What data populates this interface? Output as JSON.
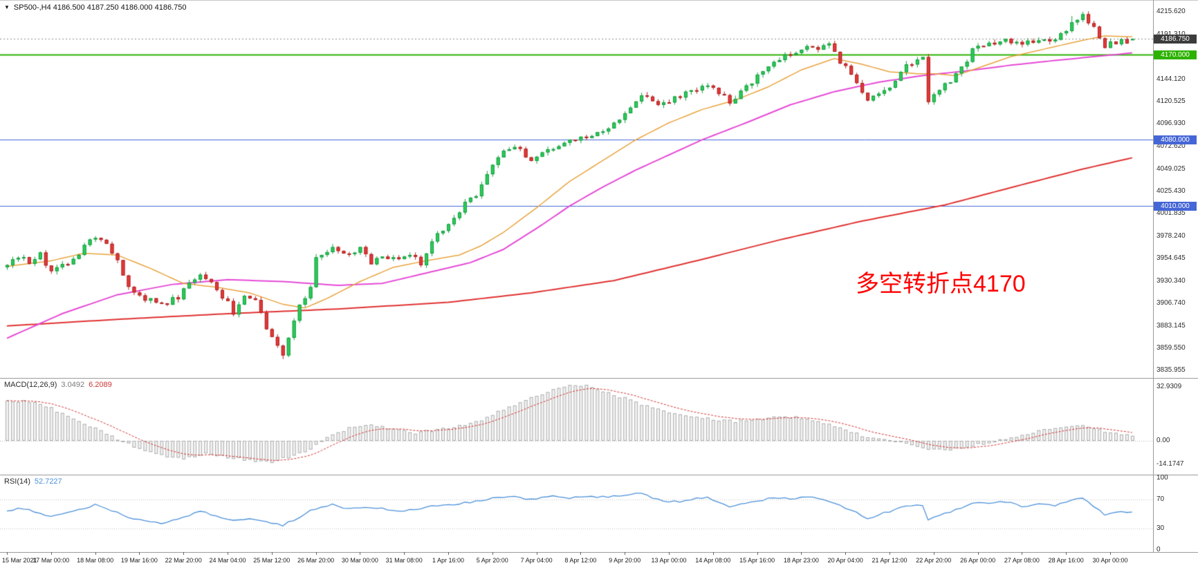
{
  "header": {
    "icon": "▼",
    "text": "SP500-,H4  4186.500 4187.250 4186.000 4186.750"
  },
  "chart_data": {
    "type": "candlestick",
    "symbol": "SP500-",
    "timeframe": "H4",
    "current_ohlc": {
      "open": 4186.5,
      "high": 4187.25,
      "low": 4186.0,
      "close": 4186.75
    },
    "ylim": [
      3828,
      4228
    ],
    "bars": 205,
    "grid": false,
    "price_axis_ticks": [
      "4215.620",
      "4191.310",
      "4144.120",
      "4120.525",
      "4096.930",
      "4072.620",
      "4049.025",
      "4025.430",
      "4001.835",
      "3978.240",
      "3954.645",
      "3930.340",
      "3906.740",
      "3883.145",
      "3859.550",
      "3835.955"
    ],
    "time_ticks": [
      "15 Mar 2021",
      "17 Mar 00:00",
      "18 Mar 08:00",
      "19 Mar 16:00",
      "22 Mar 20:00",
      "24 Mar 04:00",
      "25 Mar 12:00",
      "26 Mar 20:00",
      "30 Mar 00:00",
      "31 Mar 08:00",
      "1 Apr 16:00",
      "5 Apr 20:00",
      "7 Apr 04:00",
      "8 Apr 12:00",
      "9 Apr 20:00",
      "13 Apr 00:00",
      "14 Apr 08:00",
      "15 Apr 16:00",
      "18 Apr 23:00",
      "20 Apr 04:00",
      "21 Apr 12:00",
      "22 Apr 20:00",
      "26 Apr 00:00",
      "27 Apr 08:00",
      "28 Apr 16:00",
      "30 Apr 00:00"
    ],
    "close_anchors": [
      [
        0,
        3945
      ],
      [
        2,
        3956
      ],
      [
        4,
        3950
      ],
      [
        6,
        3958
      ],
      [
        8,
        3940
      ],
      [
        11,
        3950
      ],
      [
        13,
        3960
      ],
      [
        16,
        3978
      ],
      [
        18,
        3972
      ],
      [
        20,
        3950
      ],
      [
        23,
        3916
      ],
      [
        26,
        3910
      ],
      [
        29,
        3908
      ],
      [
        31,
        3914
      ],
      [
        35,
        3938
      ],
      [
        37,
        3932
      ],
      [
        41,
        3898
      ],
      [
        43,
        3916
      ],
      [
        45,
        3908
      ],
      [
        47,
        3882
      ],
      [
        49,
        3862
      ],
      [
        50,
        3852
      ],
      [
        52,
        3886
      ],
      [
        53,
        3903
      ],
      [
        55,
        3925
      ],
      [
        56,
        3956
      ],
      [
        58,
        3962
      ],
      [
        59,
        3968
      ],
      [
        61,
        3958
      ],
      [
        64,
        3964
      ],
      [
        66,
        3950
      ],
      [
        68,
        3958
      ],
      [
        71,
        3952
      ],
      [
        73,
        3958
      ],
      [
        75,
        3950
      ],
      [
        77,
        3974
      ],
      [
        79,
        3984
      ],
      [
        81,
        3998
      ],
      [
        83,
        4014
      ],
      [
        85,
        4020
      ],
      [
        87,
        4042
      ],
      [
        89,
        4060
      ],
      [
        91,
        4072
      ],
      [
        93,
        4068
      ],
      [
        95,
        4056
      ],
      [
        97,
        4066
      ],
      [
        99,
        4072
      ],
      [
        101,
        4078
      ],
      [
        103,
        4080
      ],
      [
        105,
        4084
      ],
      [
        107,
        4088
      ],
      [
        109,
        4094
      ],
      [
        111,
        4100
      ],
      [
        113,
        4112
      ],
      [
        115,
        4126
      ],
      [
        117,
        4120
      ],
      [
        119,
        4118
      ],
      [
        121,
        4124
      ],
      [
        123,
        4128
      ],
      [
        125,
        4132
      ],
      [
        127,
        4138
      ],
      [
        129,
        4130
      ],
      [
        131,
        4121
      ],
      [
        133,
        4130
      ],
      [
        135,
        4142
      ],
      [
        137,
        4155
      ],
      [
        139,
        4164
      ],
      [
        141,
        4170
      ],
      [
        143,
        4174
      ],
      [
        145,
        4180
      ],
      [
        147,
        4177
      ],
      [
        149,
        4180
      ],
      [
        151,
        4163
      ],
      [
        153,
        4150
      ],
      [
        155,
        4132
      ],
      [
        156,
        4122
      ],
      [
        158,
        4128
      ],
      [
        160,
        4138
      ],
      [
        162,
        4150
      ],
      [
        163,
        4158
      ],
      [
        165,
        4163
      ],
      [
        166,
        4170
      ],
      [
        167,
        4122
      ],
      [
        168,
        4128
      ],
      [
        169,
        4133
      ],
      [
        171,
        4142
      ],
      [
        173,
        4155
      ],
      [
        175,
        4176
      ],
      [
        177,
        4180
      ],
      [
        179,
        4183
      ],
      [
        181,
        4186
      ],
      [
        183,
        4181
      ],
      [
        185,
        4183
      ],
      [
        187,
        4187
      ],
      [
        189,
        4182
      ],
      [
        191,
        4190
      ],
      [
        193,
        4206
      ],
      [
        195,
        4211
      ],
      [
        196,
        4205
      ],
      [
        197,
        4198
      ],
      [
        199,
        4179
      ],
      [
        201,
        4184
      ],
      [
        203,
        4183
      ],
      [
        204,
        4186.75
      ]
    ],
    "overrides": {
      "low": {
        "50": 3848
      },
      "high": {
        "193": 4211,
        "195": 4215.5
      }
    },
    "candle_colors": {
      "up": "#2ECC5B",
      "up_edge": "#159B3F",
      "down": "#E23B3B",
      "down_edge": "#B02020"
    },
    "moving_averages": [
      {
        "name": "ma-fast-orange",
        "color": "#E8A33D",
        "width": 1.5,
        "anchors": [
          [
            0,
            3946
          ],
          [
            8,
            3952
          ],
          [
            14,
            3960
          ],
          [
            20,
            3958
          ],
          [
            26,
            3944
          ],
          [
            32,
            3928
          ],
          [
            38,
            3924
          ],
          [
            44,
            3918
          ],
          [
            50,
            3906
          ],
          [
            54,
            3902
          ],
          [
            58,
            3912
          ],
          [
            64,
            3930
          ],
          [
            70,
            3945
          ],
          [
            76,
            3952
          ],
          [
            82,
            3958
          ],
          [
            86,
            3968
          ],
          [
            90,
            3982
          ],
          [
            96,
            4008
          ],
          [
            102,
            4036
          ],
          [
            108,
            4058
          ],
          [
            114,
            4080
          ],
          [
            120,
            4098
          ],
          [
            126,
            4112
          ],
          [
            132,
            4122
          ],
          [
            138,
            4136
          ],
          [
            144,
            4154
          ],
          [
            150,
            4166
          ],
          [
            155,
            4160
          ],
          [
            160,
            4152
          ],
          [
            165,
            4150
          ],
          [
            168,
            4150
          ],
          [
            172,
            4148
          ],
          [
            176,
            4156
          ],
          [
            182,
            4168
          ],
          [
            188,
            4176
          ],
          [
            194,
            4184
          ],
          [
            199,
            4190
          ],
          [
            204,
            4189
          ]
        ]
      },
      {
        "name": "ma-mid-magenta",
        "color": "#E549D6",
        "width": 2,
        "anchors": [
          [
            0,
            3870
          ],
          [
            10,
            3896
          ],
          [
            20,
            3916
          ],
          [
            30,
            3927
          ],
          [
            40,
            3932
          ],
          [
            50,
            3930
          ],
          [
            60,
            3926
          ],
          [
            68,
            3928
          ],
          [
            76,
            3939
          ],
          [
            84,
            3950
          ],
          [
            90,
            3964
          ],
          [
            97,
            3990
          ],
          [
            102,
            4010
          ],
          [
            108,
            4030
          ],
          [
            114,
            4048
          ],
          [
            120,
            4064
          ],
          [
            126,
            4080
          ],
          [
            134,
            4098
          ],
          [
            142,
            4117
          ],
          [
            150,
            4131
          ],
          [
            158,
            4141
          ],
          [
            166,
            4148
          ],
          [
            174,
            4153
          ],
          [
            182,
            4159
          ],
          [
            190,
            4164
          ],
          [
            197,
            4168
          ],
          [
            204,
            4172
          ]
        ]
      },
      {
        "name": "ma-slow-red",
        "color": "#E03131",
        "width": 2,
        "anchors": [
          [
            0,
            3883
          ],
          [
            20,
            3890
          ],
          [
            40,
            3896
          ],
          [
            60,
            3901
          ],
          [
            80,
            3908
          ],
          [
            95,
            3918
          ],
          [
            110,
            3931
          ],
          [
            125,
            3952
          ],
          [
            140,
            3974
          ],
          [
            155,
            3994
          ],
          [
            170,
            4011
          ],
          [
            185,
            4034
          ],
          [
            195,
            4049
          ],
          [
            204,
            4061
          ]
        ]
      }
    ],
    "hlines": [
      {
        "price": 4170.0,
        "label": "4170.000",
        "color": "#2DB200",
        "width": 2
      },
      {
        "price": 4080.0,
        "label": "4080.000",
        "color": "#4566D6",
        "width": 1
      },
      {
        "price": 4010.0,
        "label": "4010.000",
        "color": "#4566D6",
        "width": 1
      }
    ],
    "current_price_tag": {
      "label": "4186.750",
      "price": 4186.75,
      "bg": "#3C3C3C"
    },
    "annotation": {
      "text": "多空转折点4170",
      "color": "#FF0000"
    },
    "macd": {
      "label": "MACD(12,26,9)",
      "value_main": "3.0492",
      "value_signal": "6.2089",
      "axis_ticks": [
        "32.9309",
        "0.00",
        "-14.1747"
      ],
      "hist_fill": "#F1F1F1",
      "hist_edge": "#ADADAD",
      "signal_color": "#D23030",
      "anchors": [
        [
          0,
          24
        ],
        [
          4,
          24
        ],
        [
          8,
          20
        ],
        [
          12,
          13
        ],
        [
          16,
          8
        ],
        [
          20,
          1
        ],
        [
          24,
          -5
        ],
        [
          28,
          -9
        ],
        [
          32,
          -11
        ],
        [
          36,
          -8
        ],
        [
          40,
          -10
        ],
        [
          44,
          -12
        ],
        [
          48,
          -13
        ],
        [
          52,
          -9
        ],
        [
          55,
          -5
        ],
        [
          58,
          2
        ],
        [
          62,
          8
        ],
        [
          66,
          10
        ],
        [
          70,
          7
        ],
        [
          74,
          5
        ],
        [
          78,
          7
        ],
        [
          82,
          9
        ],
        [
          86,
          13
        ],
        [
          90,
          19
        ],
        [
          94,
          25
        ],
        [
          98,
          30
        ],
        [
          102,
          34
        ],
        [
          105,
          34
        ],
        [
          108,
          30
        ],
        [
          112,
          26
        ],
        [
          116,
          21
        ],
        [
          120,
          17
        ],
        [
          124,
          15
        ],
        [
          128,
          13
        ],
        [
          132,
          12
        ],
        [
          136,
          13
        ],
        [
          140,
          15
        ],
        [
          144,
          14
        ],
        [
          148,
          11
        ],
        [
          152,
          7
        ],
        [
          156,
          2
        ],
        [
          160,
          0
        ],
        [
          164,
          -2
        ],
        [
          167,
          -5
        ],
        [
          170,
          -6
        ],
        [
          174,
          -4
        ],
        [
          178,
          -1
        ],
        [
          182,
          2
        ],
        [
          186,
          5
        ],
        [
          190,
          8
        ],
        [
          194,
          10
        ],
        [
          197,
          8
        ],
        [
          200,
          5
        ],
        [
          204,
          3.05
        ]
      ]
    },
    "rsi": {
      "label": "RSI(14)",
      "value": "52.7227",
      "axis_ticks": [
        "100",
        "70",
        "30",
        "0"
      ],
      "levels": [
        70,
        30
      ],
      "color": "#4A8FD9",
      "anchors": [
        [
          0,
          55
        ],
        [
          3,
          58
        ],
        [
          6,
          52
        ],
        [
          8,
          46
        ],
        [
          11,
          52
        ],
        [
          14,
          58
        ],
        [
          16,
          63
        ],
        [
          19,
          55
        ],
        [
          22,
          45
        ],
        [
          25,
          40
        ],
        [
          28,
          38
        ],
        [
          31,
          43
        ],
        [
          35,
          54
        ],
        [
          38,
          48
        ],
        [
          41,
          40
        ],
        [
          44,
          45
        ],
        [
          47,
          38
        ],
        [
          50,
          34
        ],
        [
          53,
          46
        ],
        [
          56,
          58
        ],
        [
          59,
          63
        ],
        [
          62,
          57
        ],
        [
          65,
          60
        ],
        [
          68,
          58
        ],
        [
          71,
          54
        ],
        [
          74,
          57
        ],
        [
          77,
          61
        ],
        [
          80,
          63
        ],
        [
          83,
          66
        ],
        [
          86,
          69
        ],
        [
          89,
          73
        ],
        [
          92,
          74
        ],
        [
          95,
          70
        ],
        [
          98,
          75
        ],
        [
          101,
          72
        ],
        [
          104,
          73
        ],
        [
          107,
          74
        ],
        [
          110,
          75
        ],
        [
          113,
          77
        ],
        [
          115,
          79
        ],
        [
          118,
          70
        ],
        [
          121,
          67
        ],
        [
          124,
          70
        ],
        [
          127,
          73
        ],
        [
          129,
          65
        ],
        [
          131,
          61
        ],
        [
          134,
          65
        ],
        [
          137,
          70
        ],
        [
          139,
          73
        ],
        [
          142,
          71
        ],
        [
          145,
          74
        ],
        [
          148,
          70
        ],
        [
          151,
          61
        ],
        [
          154,
          52
        ],
        [
          156,
          44
        ],
        [
          158,
          49
        ],
        [
          160,
          54
        ],
        [
          163,
          61
        ],
        [
          166,
          63
        ],
        [
          167,
          43
        ],
        [
          169,
          49
        ],
        [
          172,
          56
        ],
        [
          175,
          66
        ],
        [
          178,
          66
        ],
        [
          181,
          67
        ],
        [
          184,
          61
        ],
        [
          187,
          64
        ],
        [
          190,
          61
        ],
        [
          193,
          69
        ],
        [
          195,
          72
        ],
        [
          197,
          61
        ],
        [
          199,
          49
        ],
        [
          201,
          53
        ],
        [
          204,
          52.72
        ]
      ]
    }
  }
}
